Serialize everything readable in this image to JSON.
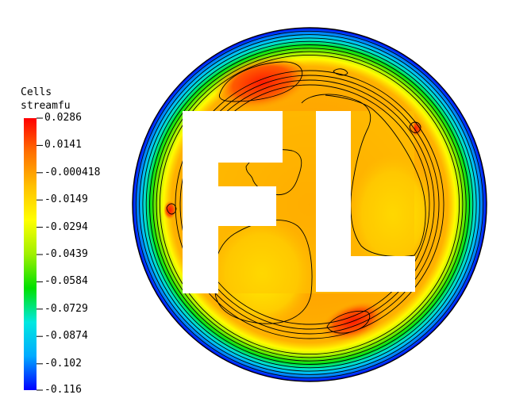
{
  "chart_data": {
    "type": "heatmap",
    "field_name": "Cells streamfu",
    "legend_title_lines": [
      "Cells",
      "streamfu"
    ],
    "colorbar": {
      "min": -0.116,
      "max": 0.0286,
      "colors": [
        "#0000ff",
        "#00aaff",
        "#00e8e0",
        "#00e000",
        "#a0f000",
        "#ffff00",
        "#ffc000",
        "#ff7000",
        "#ff0000"
      ],
      "ticks": [
        {
          "value": 0.0286,
          "label": "0.0286"
        },
        {
          "value": 0.0141,
          "label": "0.0141"
        },
        {
          "value": -0.000418,
          "label": "-0.000418"
        },
        {
          "value": -0.0149,
          "label": "-0.0149"
        },
        {
          "value": -0.0294,
          "label": "-0.0294"
        },
        {
          "value": -0.0439,
          "label": "-0.0439"
        },
        {
          "value": -0.0584,
          "label": "-0.0584"
        },
        {
          "value": -0.0729,
          "label": "-0.0729"
        },
        {
          "value": -0.0874,
          "label": "-0.0874"
        },
        {
          "value": -0.102,
          "label": "-0.102"
        },
        {
          "value": -0.116,
          "label": "-0.116"
        }
      ]
    },
    "domain_shape": "circle",
    "boundary_value": -0.116,
    "interior_value": 0.003,
    "obstacle_letters": "FL",
    "obstacle_color": "#ffffff",
    "contour_color": "#000000",
    "ring_contour_count": 13
  }
}
